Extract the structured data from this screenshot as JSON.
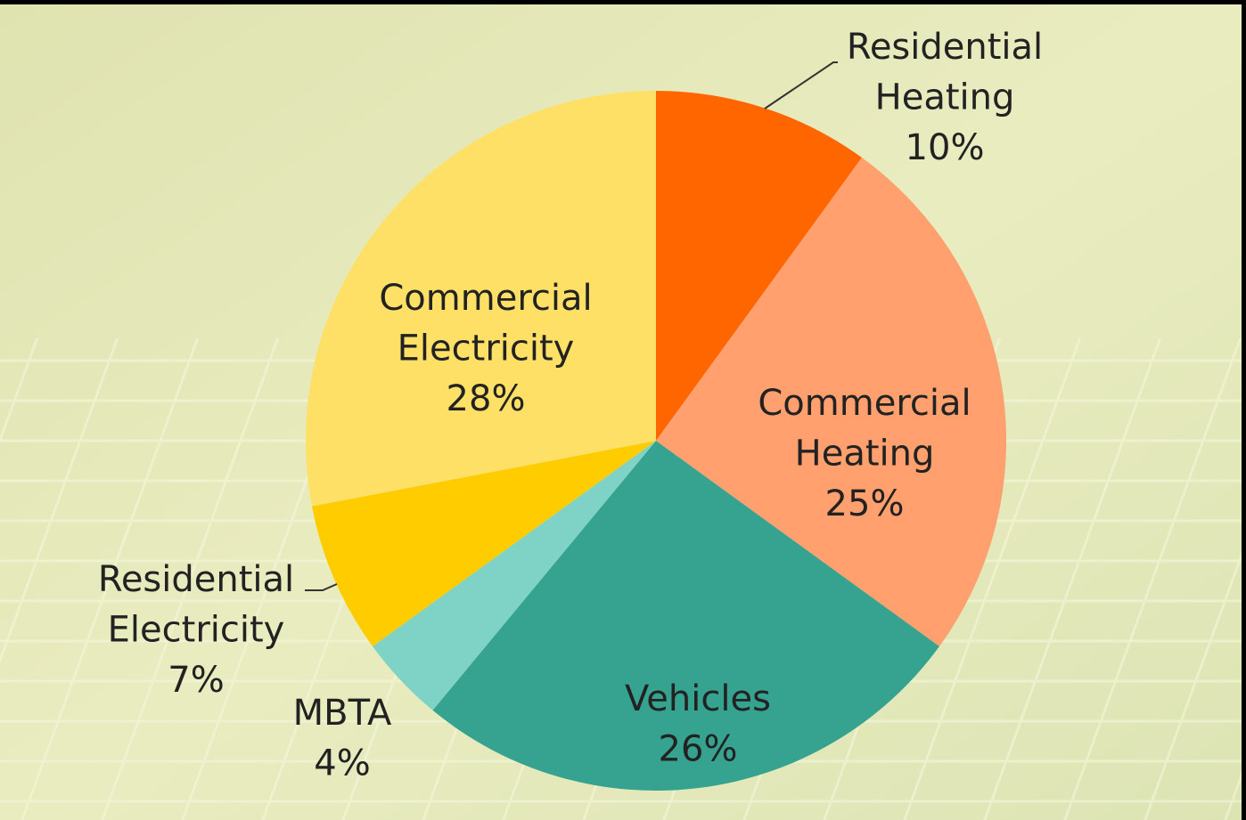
{
  "chart_data": {
    "type": "pie",
    "categories": [
      "Residential Heating",
      "Commercial Heating",
      "Vehicles",
      "MBTA",
      "Residential Electricity",
      "Commercial Electricity"
    ],
    "values": [
      10,
      25,
      26,
      4,
      7,
      28
    ],
    "value_labels": [
      "10%",
      "25%",
      "26%",
      "4%",
      "7%",
      "28%"
    ],
    "colors": [
      "#ff6600",
      "#ffa06e",
      "#36a390",
      "#7fd3c6",
      "#ffcc00",
      "#ffe066"
    ]
  }
}
